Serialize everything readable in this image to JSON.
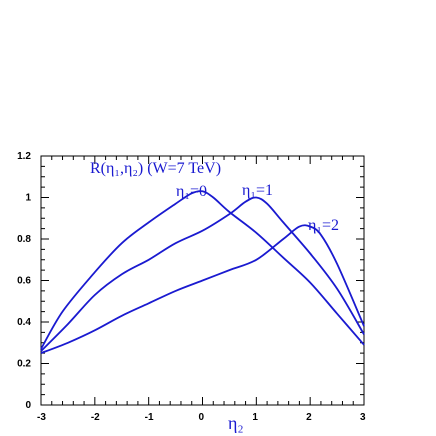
{
  "chart_data": {
    "type": "line",
    "title": "R(η₁,η₂)    (W=7 TeV)",
    "xlabel": "η₂",
    "ylabel": "",
    "xlim": [
      -3,
      3
    ],
    "ylim": [
      0,
      1.2
    ],
    "grid": false,
    "x_ticks": [
      "-3",
      "-2",
      "-1",
      "0",
      "1",
      "2",
      "3"
    ],
    "y_ticks": [
      "0",
      "0.2",
      "0.4",
      "0.6",
      "0.8",
      "1",
      "1.2"
    ],
    "series": [
      {
        "name": "η₁=0",
        "x": [
          -3,
          -2.6,
          -2,
          -1.5,
          -1,
          -0.5,
          -0.2,
          0,
          0.2,
          0.5,
          1,
          1.5,
          2,
          2.5,
          3
        ],
        "y": [
          0.27,
          0.45,
          0.64,
          0.78,
          0.88,
          0.97,
          1.02,
          1.03,
          1.0,
          0.93,
          0.83,
          0.71,
          0.59,
          0.44,
          0.29
        ]
      },
      {
        "name": "η₁=1",
        "x": [
          -3,
          -2.5,
          -2,
          -1.5,
          -1,
          -0.5,
          0,
          0.5,
          0.8,
          1,
          1.2,
          1.5,
          2,
          2.5,
          3
        ],
        "y": [
          0.26,
          0.39,
          0.53,
          0.63,
          0.7,
          0.78,
          0.84,
          0.92,
          0.98,
          1.0,
          0.97,
          0.88,
          0.73,
          0.56,
          0.34
        ]
      },
      {
        "name": "η₁=2",
        "x": [
          -3,
          -2.5,
          -2,
          -1.5,
          -1,
          -0.5,
          0,
          0.5,
          1,
          1.5,
          1.8,
          2,
          2.2,
          2.5,
          3
        ],
        "y": [
          0.25,
          0.3,
          0.36,
          0.43,
          0.49,
          0.55,
          0.6,
          0.65,
          0.7,
          0.8,
          0.86,
          0.86,
          0.82,
          0.68,
          0.38
        ]
      }
    ]
  }
}
